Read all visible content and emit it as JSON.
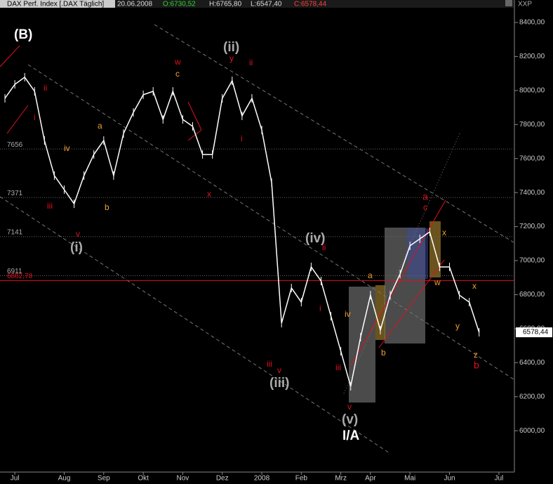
{
  "chart_data": {
    "type": "line",
    "header": [
      "DAX Perf. Index [.DAX Täglich]",
      "20.06.2008",
      "O:6730,52",
      "H:6765,80",
      "L:6547,40",
      "C:6578,44"
    ],
    "axis_label": "XXP",
    "categories": [
      null,
      "Jul",
      null,
      null,
      null,
      null,
      "Aug",
      null,
      null,
      null,
      "Sep",
      null,
      null,
      null,
      "Okt",
      null,
      null,
      null,
      "Nov",
      null,
      null,
      null,
      "Dez",
      null,
      null,
      null,
      "2008",
      null,
      null,
      null,
      "Feb",
      null,
      null,
      null,
      "Mrz",
      null,
      null,
      "Apr",
      null,
      null,
      null,
      "Mai",
      null,
      null,
      null,
      "Jun",
      null,
      null,
      null,
      null,
      "Jul",
      null
    ],
    "series": [
      {
        "name": "DAX",
        "color": "#ffffff",
        "values": [
          7954,
          8036,
          8078,
          7995,
          7706,
          7500,
          7417,
          7334,
          7500,
          7624,
          7706,
          7500,
          7747,
          7871,
          7975,
          7995,
          7830,
          7995,
          7830,
          7789,
          7624,
          7624,
          7954,
          8057,
          7851,
          7954,
          7768,
          7458,
          6632,
          6839,
          6756,
          6963,
          6880,
          6673,
          6467,
          6261,
          6550,
          6797,
          6591,
          6797,
          6921,
          7087,
          7128,
          7169,
          6963,
          6963,
          6797,
          6756,
          6578.44,
          null,
          null,
          null
        ]
      }
    ],
    "ylim": [
      5757,
      8532
    ],
    "yticks": [
      {
        "value": 6000,
        "label": "6000,00"
      },
      {
        "value": 6200,
        "label": "6200,00"
      },
      {
        "value": 6400,
        "label": "6400,00"
      },
      {
        "value": 6600,
        "label": "6600,00"
      },
      {
        "value": 6800,
        "label": "6800,00"
      },
      {
        "value": 7000,
        "label": "7000,00"
      },
      {
        "value": 7200,
        "label": "7200,00"
      },
      {
        "value": 7400,
        "label": "7400,00"
      },
      {
        "value": 7600,
        "label": "7600,00"
      },
      {
        "value": 7800,
        "label": "7800,00"
      },
      {
        "value": 8000,
        "label": "8000,00"
      },
      {
        "value": 8200,
        "label": "8200,00"
      },
      {
        "value": 8400,
        "label": "8400,00"
      }
    ],
    "reference_lines": [
      {
        "value": 7656,
        "label": "7656",
        "color": "#666666"
      },
      {
        "value": 7371,
        "label": "7371",
        "color": "#666666"
      },
      {
        "value": 7141,
        "label": "7141",
        "color": "#666666"
      },
      {
        "value": 6911,
        "label": "6911",
        "color": "#666666"
      },
      {
        "value": 6882.78,
        "label": "6882,78",
        "color": "#e01020"
      }
    ],
    "last_price": {
      "value": 6578.44,
      "label": "6578,44"
    },
    "annotations": [
      "(B)",
      "(ii)",
      "(i)",
      "(iii)",
      "(iv)",
      "(v)",
      "I/A",
      "y",
      "ii",
      "w",
      "c",
      "a",
      "b",
      "iv",
      "iii",
      "v",
      "ii",
      "i",
      "x",
      "i",
      "iii",
      "v",
      "iv",
      "iii",
      "v",
      "a",
      "b",
      "a",
      "c",
      "x",
      "w",
      "x",
      "y",
      "z",
      "b",
      "ii",
      "i"
    ]
  }
}
